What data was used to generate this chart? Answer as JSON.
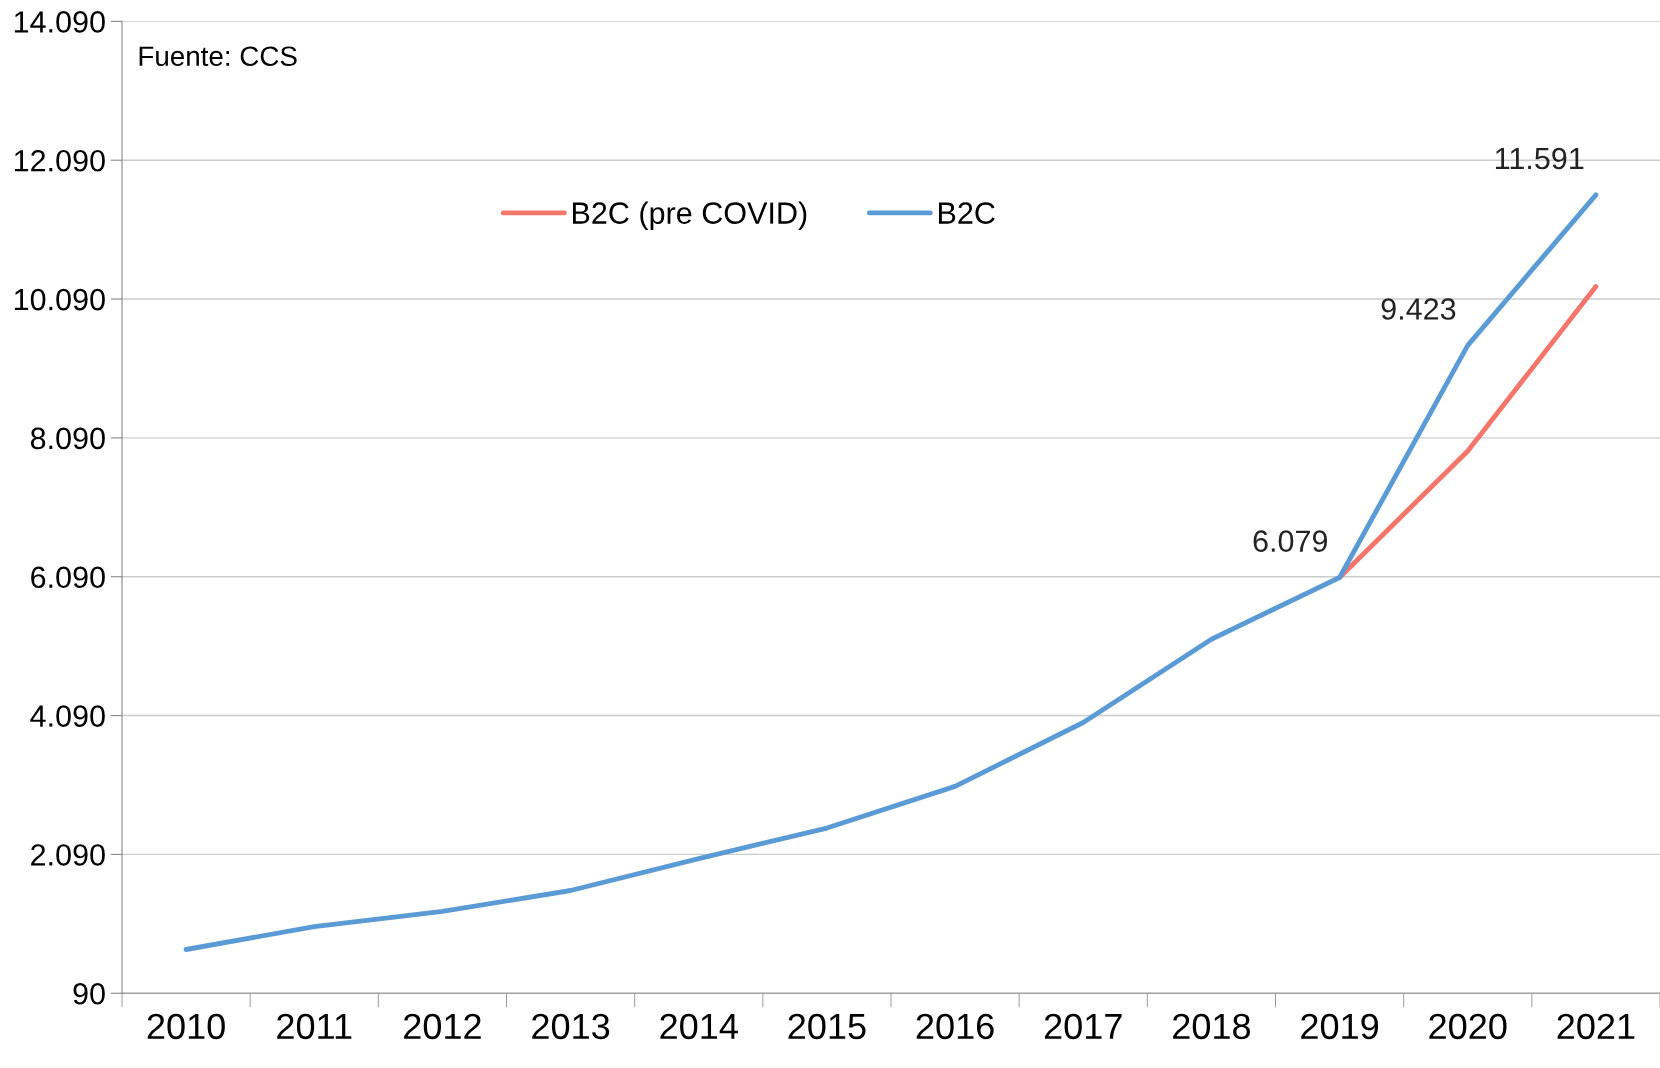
{
  "chart_data": {
    "type": "line",
    "categories": [
      "2010",
      "2011",
      "2012",
      "2013",
      "2014",
      "2015",
      "2016",
      "2017",
      "2018",
      "2019",
      "2020",
      "2021"
    ],
    "series": [
      {
        "name": "B2C (pre COVID)",
        "color": "#f4766b",
        "values": [
          null,
          null,
          null,
          null,
          null,
          null,
          null,
          null,
          null,
          6079,
          7900,
          10270
        ]
      },
      {
        "name": "B2C",
        "color": "#5b9bd5",
        "values": [
          720,
          1050,
          1270,
          1570,
          2030,
          2470,
          3070,
          3990,
          5190,
          6079,
          9423,
          11591
        ],
        "value_labels": [
          null,
          null,
          null,
          null,
          null,
          null,
          null,
          null,
          null,
          "6.079",
          "9.423",
          "11.591"
        ]
      }
    ],
    "ylim": [
      90,
      14090
    ],
    "yticks": [
      {
        "value": 90,
        "label": "90"
      },
      {
        "value": 2090,
        "label": "2.090"
      },
      {
        "value": 4090,
        "label": "4.090"
      },
      {
        "value": 6090,
        "label": "6.090"
      },
      {
        "value": 8090,
        "label": "8.090"
      },
      {
        "value": 10090,
        "label": "10.090"
      },
      {
        "value": 12090,
        "label": "12.090"
      },
      {
        "value": 14090,
        "label": "14.090"
      }
    ],
    "grid": "y",
    "legend": "top",
    "line_style": "solid",
    "marker": "none",
    "annotations": [
      "Fuente: CCS"
    ]
  }
}
